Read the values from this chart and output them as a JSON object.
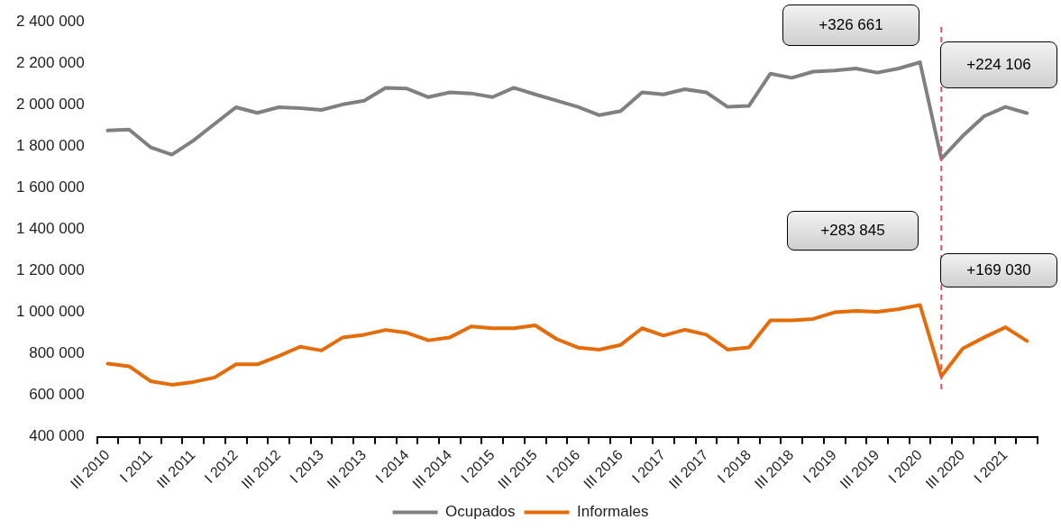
{
  "chart_data": {
    "type": "line",
    "categories": [
      "III 2010",
      null,
      "I 2011",
      null,
      "III 2011",
      null,
      "I 2012",
      null,
      "III 2012",
      null,
      "I 2013",
      null,
      "III 2013",
      null,
      "I 2014",
      null,
      "III 2014",
      null,
      "I 2015",
      null,
      "III 2015",
      null,
      "I 2016",
      null,
      "III 2016",
      null,
      "I 2017",
      null,
      "III 2017",
      null,
      "I 2018",
      null,
      "III 2018",
      null,
      "I 2019",
      null,
      "III 2019",
      null,
      "I 2020",
      null,
      "III 2020",
      null,
      "I 2021",
      null
    ],
    "series": [
      {
        "name": "Ocupados",
        "color": "#808080",
        "values": [
          1876000,
          1881000,
          1796000,
          1760000,
          1827000,
          1908000,
          1988000,
          1961000,
          1988000,
          1984000,
          1975000,
          2002000,
          2020000,
          2082000,
          2078000,
          2037000,
          2060000,
          2055000,
          2037000,
          2082000,
          2050000,
          2020000,
          1990000,
          1950000,
          1970000,
          2060000,
          2050000,
          2075000,
          2060000,
          1990000,
          1995000,
          2150000,
          2130000,
          2160000,
          2165000,
          2175000,
          2155000,
          2175000,
          2205000,
          1740000,
          1850000,
          1945000,
          1990000,
          1960000
        ]
      },
      {
        "name": "Informales",
        "color": "#e46c0a",
        "values": [
          753000,
          740000,
          668000,
          651000,
          664000,
          686000,
          749000,
          749000,
          789000,
          834000,
          816000,
          879000,
          892000,
          915000,
          901000,
          865000,
          879000,
          932000,
          923000,
          923000,
          937000,
          871000,
          830000,
          820000,
          843000,
          923000,
          888000,
          916000,
          892000,
          820000,
          831000,
          961000,
          961000,
          968000,
          1000000,
          1007000,
          1002000,
          1015000,
          1035000,
          692000,
          825000,
          879000,
          928000,
          862000
        ]
      }
    ],
    "ylim": [
      400000,
      2400000
    ],
    "yticks": [
      {
        "value": 400000,
        "label": "400 000"
      },
      {
        "value": 600000,
        "label": "600 000"
      },
      {
        "value": 800000,
        "label": "800 000"
      },
      {
        "value": 1000000,
        "label": "1 000 000"
      },
      {
        "value": 1200000,
        "label": "1 200 000"
      },
      {
        "value": 1400000,
        "label": "1 400 000"
      },
      {
        "value": 1600000,
        "label": "1 600 000"
      },
      {
        "value": 1800000,
        "label": "1 800 000"
      },
      {
        "value": 2000000,
        "label": "2 000 000"
      },
      {
        "value": 2200000,
        "label": "2 200 000"
      },
      {
        "value": 2400000,
        "label": "2 400 000"
      }
    ],
    "annotations": [
      "+326 661",
      "+224 106",
      "+283 845",
      "+169 030"
    ],
    "grid": false,
    "legend": "bottom",
    "marker": "none",
    "line_style": "solid"
  }
}
